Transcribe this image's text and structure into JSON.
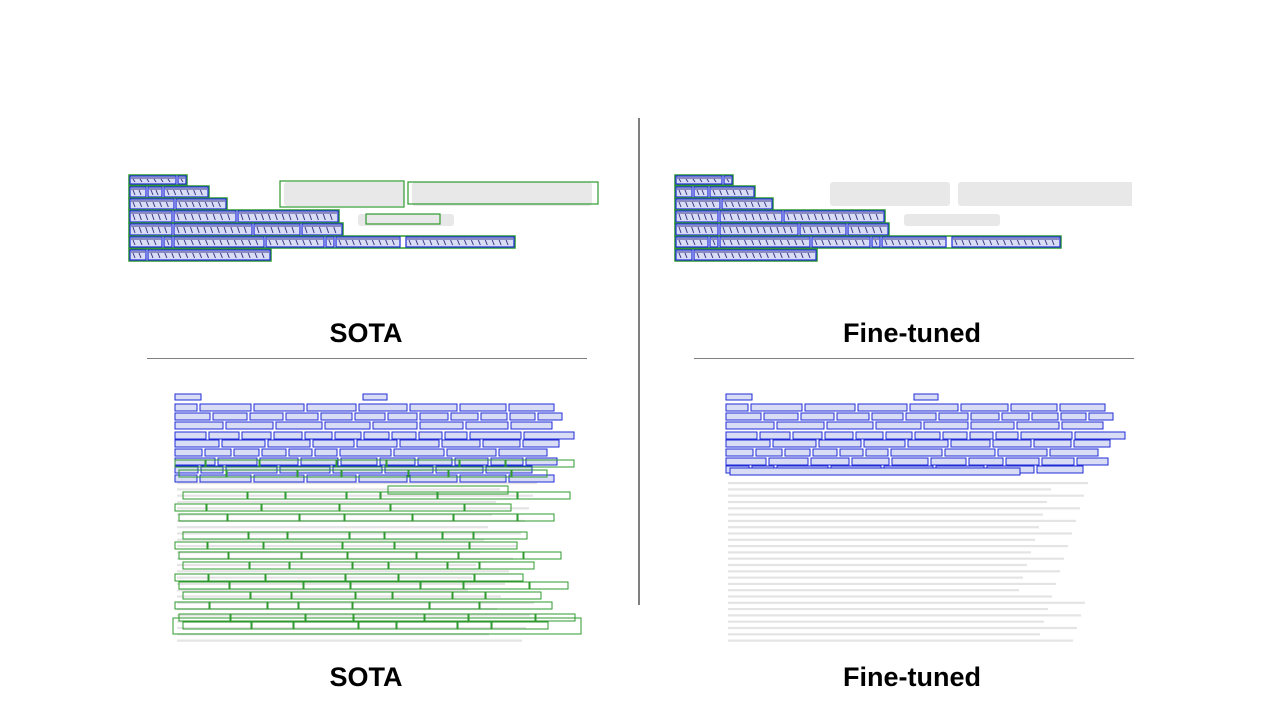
{
  "slide": {
    "top_left_caption": "SOTA",
    "top_right_caption": "Fine-tuned",
    "bottom_left_caption": "SOTA",
    "bottom_right_caption": "Fine-tuned"
  },
  "colors": {
    "word_box_blue": "#1f2bd6",
    "word_fill_blue": "#d9dcf5",
    "line_box_green": "#2e9a2e",
    "ghost_text": "#d6d6d6",
    "divider": "#7f7f7f"
  }
}
